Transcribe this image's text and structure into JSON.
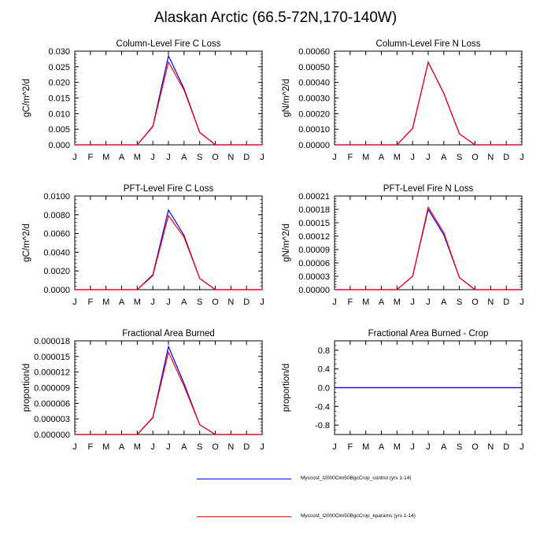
{
  "title": "Alaskan Arctic (66.5-72N,170-140W)",
  "colors": {
    "control": "#0000ff",
    "kparams": "#ff0000",
    "axis": "#000000"
  },
  "legend": [
    {
      "label": "Myccost_I2000Clm50BgcCrop_control (yrs 1-14)",
      "color": "#0000ff"
    },
    {
      "label": "Myccost_I2000Clm50BgcCrop_kparams (yrs 1-14)",
      "color": "#ff0000"
    }
  ],
  "chart_data": [
    {
      "type": "line",
      "title": "Column-Level Fire C Loss",
      "ylabel": "gC/m^2/d",
      "xlabel": "",
      "x": [
        "J",
        "F",
        "M",
        "A",
        "M",
        "J",
        "J",
        "A",
        "S",
        "O",
        "N",
        "D",
        "J"
      ],
      "ylim": [
        0,
        0.03
      ],
      "yticks": [
        "0.000",
        "0.005",
        "0.010",
        "0.015",
        "0.020",
        "0.025",
        "0.030"
      ],
      "series": [
        {
          "name": "Myccost_I2000Clm50BgcCrop_control (yrs 1-14)",
          "values": [
            0,
            0,
            0,
            0,
            0,
            0.006,
            0.0285,
            0.018,
            0.004,
            0,
            0,
            0,
            0
          ]
        },
        {
          "name": "Myccost_I2000Clm50BgcCrop_kparams (yrs 1-14)",
          "values": [
            0,
            0,
            0,
            0,
            0,
            0.0058,
            0.0265,
            0.0175,
            0.004,
            0,
            0,
            0,
            0
          ]
        }
      ]
    },
    {
      "type": "line",
      "title": "Column-Level Fire N Loss",
      "ylabel": "gN/m^2/d",
      "xlabel": "",
      "x": [
        "J",
        "F",
        "M",
        "A",
        "M",
        "J",
        "J",
        "A",
        "S",
        "O",
        "N",
        "D",
        "J"
      ],
      "ylim": [
        0,
        0.0006
      ],
      "yticks": [
        "0.00000",
        "0.00010",
        "0.00020",
        "0.00030",
        "0.00040",
        "0.00050",
        "0.00060"
      ],
      "series": [
        {
          "name": "Myccost_I2000Clm50BgcCrop_control (yrs 1-14)",
          "values": [
            0,
            0,
            0,
            0,
            0,
            0.000105,
            0.00053,
            0.00033,
            7e-05,
            0,
            0,
            0,
            0
          ]
        },
        {
          "name": "Myccost_I2000Clm50BgcCrop_kparams (yrs 1-14)",
          "values": [
            0,
            0,
            0,
            0,
            0,
            0.000105,
            0.000528,
            0.000328,
            7e-05,
            0,
            0,
            0,
            0
          ]
        }
      ]
    },
    {
      "type": "line",
      "title": "PFT-Level Fire C Loss",
      "ylabel": "gC/m^2/d",
      "xlabel": "",
      "x": [
        "J",
        "F",
        "M",
        "A",
        "M",
        "J",
        "J",
        "A",
        "S",
        "O",
        "N",
        "D",
        "J"
      ],
      "ylim": [
        0,
        0.01
      ],
      "yticks": [
        "0.0000",
        "0.0020",
        "0.0040",
        "0.0060",
        "0.0080",
        "0.0100"
      ],
      "series": [
        {
          "name": "Myccost_I2000Clm50BgcCrop_control (yrs 1-14)",
          "values": [
            0,
            0,
            0,
            0,
            0,
            0.0016,
            0.0085,
            0.0058,
            0.0012,
            0,
            0,
            0,
            0
          ]
        },
        {
          "name": "Myccost_I2000Clm50BgcCrop_kparams (yrs 1-14)",
          "values": [
            0,
            0,
            0,
            0,
            0,
            0.0015,
            0.0079,
            0.0056,
            0.0012,
            0,
            0,
            0,
            0
          ]
        }
      ]
    },
    {
      "type": "line",
      "title": "PFT-Level Fire N Loss",
      "ylabel": "gN/m^2/d",
      "xlabel": "",
      "x": [
        "J",
        "F",
        "M",
        "A",
        "M",
        "J",
        "J",
        "A",
        "S",
        "O",
        "N",
        "D",
        "J"
      ],
      "ylim": [
        0,
        0.00021
      ],
      "yticks": [
        "0.00000",
        "0.00003",
        "0.00006",
        "0.00009",
        "0.00012",
        "0.00015",
        "0.00018",
        "0.00021"
      ],
      "series": [
        {
          "name": "Myccost_I2000Clm50BgcCrop_control (yrs 1-14)",
          "values": [
            0,
            0,
            0,
            0,
            0,
            3e-05,
            0.00018,
            0.000123,
            2.7e-05,
            0,
            0,
            0,
            0
          ]
        },
        {
          "name": "Myccost_I2000Clm50BgcCrop_kparams (yrs 1-14)",
          "values": [
            0,
            0,
            0,
            0,
            0,
            3e-05,
            0.000185,
            0.000128,
            2.7e-05,
            0,
            0,
            0,
            0
          ]
        }
      ]
    },
    {
      "type": "line",
      "title": "Fractional Area Burned",
      "ylabel": "proportion/d",
      "xlabel": "",
      "x": [
        "J",
        "F",
        "M",
        "A",
        "M",
        "J",
        "J",
        "A",
        "S",
        "O",
        "N",
        "D",
        "J"
      ],
      "ylim": [
        0,
        1.8e-05
      ],
      "yticks": [
        "0.000000",
        "0.000003",
        "0.000006",
        "0.000009",
        "0.000012",
        "0.000015",
        "0.000018"
      ],
      "series": [
        {
          "name": "Myccost_I2000Clm50BgcCrop_control (yrs 1-14)",
          "values": [
            0,
            0,
            0,
            0,
            0,
            3.3e-06,
            1.69e-05,
            9.8e-06,
            1.9e-06,
            0,
            0,
            0,
            0
          ]
        },
        {
          "name": "Myccost_I2000Clm50BgcCrop_kparams (yrs 1-14)",
          "values": [
            0,
            0,
            0,
            0,
            0,
            3.2e-06,
            1.58e-05,
            9.3e-06,
            1.9e-06,
            0,
            0,
            0,
            0
          ]
        }
      ]
    },
    {
      "type": "line",
      "title": "Fractional Area Burned - Crop",
      "ylabel": "proportion/d",
      "xlabel": "",
      "x": [
        "J",
        "F",
        "M",
        "A",
        "M",
        "J",
        "J",
        "A",
        "S",
        "O",
        "N",
        "D",
        "J"
      ],
      "ylim": [
        -1,
        1
      ],
      "yticks": [
        "-0.8",
        "-0.4",
        "0.0",
        "0.4",
        "0.8"
      ],
      "ytick_values": [
        -0.8,
        -0.4,
        0,
        0.4,
        0.8
      ],
      "series": [
        {
          "name": "Myccost_I2000Clm50BgcCrop_kparams (yrs 1-14)",
          "values": [
            0,
            0,
            0,
            0,
            0,
            0,
            0,
            0,
            0,
            0,
            0,
            0,
            0
          ]
        },
        {
          "name": "Myccost_I2000Clm50BgcCrop_control (yrs 1-14)",
          "values": [
            0,
            0,
            0,
            0,
            0,
            0,
            0,
            0,
            0,
            0,
            0,
            0,
            0
          ]
        }
      ]
    }
  ]
}
